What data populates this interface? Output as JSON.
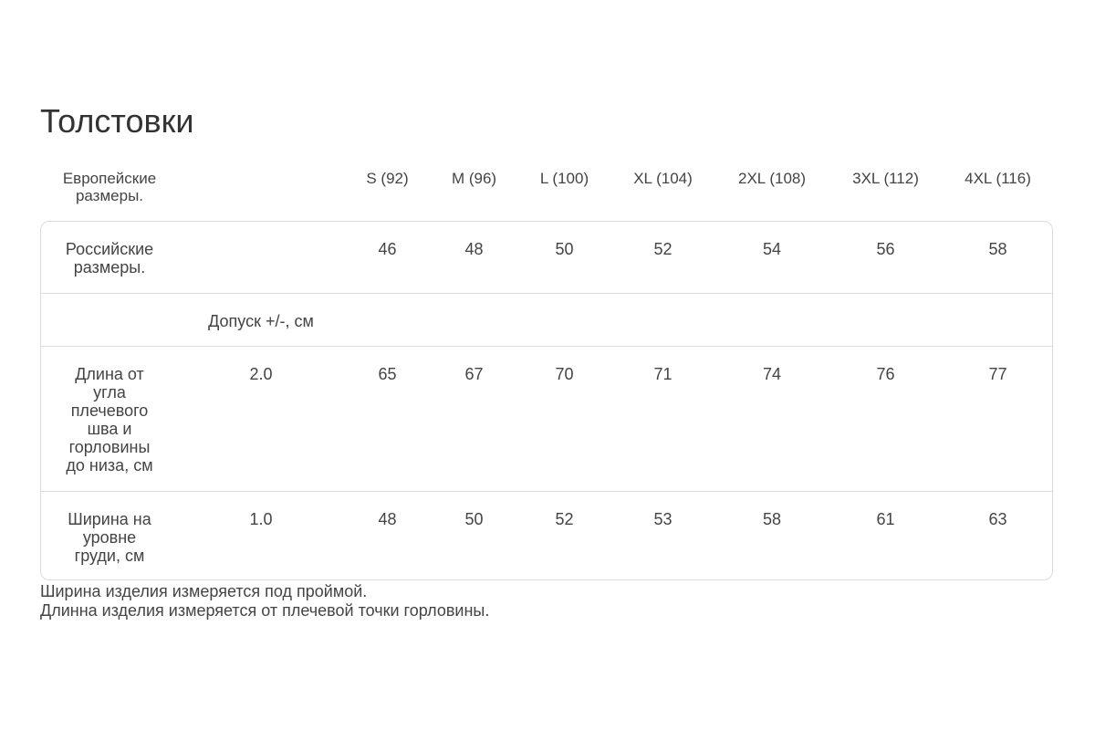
{
  "title": "Толстовки",
  "header": {
    "label": "Европейские размеры.",
    "sizes": [
      "S (92)",
      "M (96)",
      "L (100)",
      "XL (104)",
      "2XL (108)",
      "3XL (112)",
      "4XL (116)"
    ]
  },
  "rows": [
    {
      "label": "Российские размеры.",
      "tolerance": "",
      "values": [
        "46",
        "48",
        "50",
        "52",
        "54",
        "56",
        "58"
      ]
    },
    {
      "label": "",
      "tolerance": "Допуск +/-, см",
      "values": [
        "",
        "",
        "",
        "",
        "",
        "",
        ""
      ]
    },
    {
      "label": "Длина от угла плечевого шва и горловины до низа, см",
      "tolerance": "2.0",
      "values": [
        "65",
        "67",
        "70",
        "71",
        "74",
        "76",
        "77"
      ]
    },
    {
      "label": "Ширина на уровне груди, см",
      "tolerance": "1.0",
      "values": [
        "48",
        "50",
        "52",
        "53",
        "58",
        "61",
        "63"
      ]
    }
  ],
  "notes": [
    "Ширина изделия измеряется под проймой.",
    "Длинна изделия измеряется от плечевой точки горловины."
  ]
}
